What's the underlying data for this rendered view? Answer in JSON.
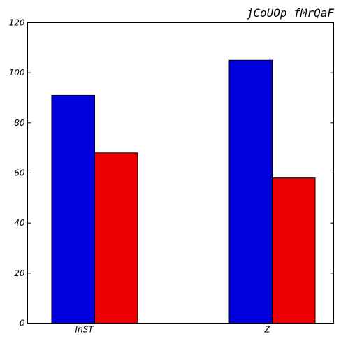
{
  "chart_data": {
    "type": "bar",
    "title": "jCoUOp fMrQaF",
    "xlabel": "",
    "ylabel": "",
    "categories": [
      "InST",
      "Z"
    ],
    "series": [
      {
        "values": [
          91,
          105
        ],
        "color": "#0000dd"
      },
      {
        "values": [
          68,
          58
        ],
        "color": "#ee0000"
      }
    ],
    "ylim": [
      0,
      120
    ],
    "yticks": [
      0,
      20,
      40,
      60,
      80,
      100,
      120
    ],
    "grid": false,
    "legend": "none"
  }
}
